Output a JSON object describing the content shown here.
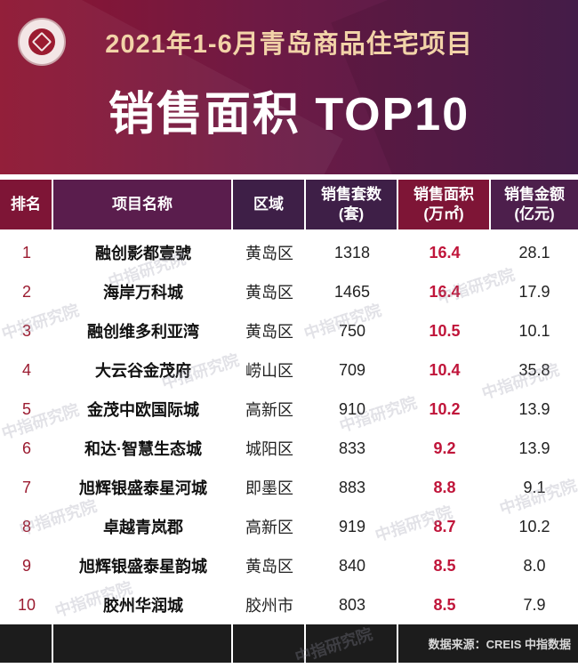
{
  "header": {
    "subtitle": "2021年1-6月青岛商品住宅项目",
    "title": "销售面积 TOP10",
    "logo_icon": "company-seal-logo"
  },
  "table": {
    "columns": [
      "排名",
      "项目名称",
      "区域",
      "销售套数\n(套)",
      "销售面积\n(万㎡)",
      "销售金额\n(亿元)"
    ],
    "rows": [
      {
        "rank": "1",
        "name": "融创影都壹號",
        "district": "黄岛区",
        "units": "1318",
        "area": "16.4",
        "amount": "28.1"
      },
      {
        "rank": "2",
        "name": "海岸万科城",
        "district": "黄岛区",
        "units": "1465",
        "area": "16.4",
        "amount": "17.9"
      },
      {
        "rank": "3",
        "name": "融创维多利亚湾",
        "district": "黄岛区",
        "units": "750",
        "area": "10.5",
        "amount": "10.1"
      },
      {
        "rank": "4",
        "name": "大云谷金茂府",
        "district": "崂山区",
        "units": "709",
        "area": "10.4",
        "amount": "35.8"
      },
      {
        "rank": "5",
        "name": "金茂中欧国际城",
        "district": "高新区",
        "units": "910",
        "area": "10.2",
        "amount": "13.9"
      },
      {
        "rank": "6",
        "name": "和达·智慧生态城",
        "district": "城阳区",
        "units": "833",
        "area": "9.2",
        "amount": "13.9"
      },
      {
        "rank": "7",
        "name": "旭辉银盛泰星河城",
        "district": "即墨区",
        "units": "883",
        "area": "8.8",
        "amount": "9.1"
      },
      {
        "rank": "8",
        "name": "卓越青岚郡",
        "district": "高新区",
        "units": "919",
        "area": "8.7",
        "amount": "10.2"
      },
      {
        "rank": "9",
        "name": "旭辉银盛泰星韵城",
        "district": "黄岛区",
        "units": "840",
        "area": "8.5",
        "amount": "8.0"
      },
      {
        "rank": "10",
        "name": "胶州华润城",
        "district": "胶州市",
        "units": "803",
        "area": "8.5",
        "amount": "7.9"
      }
    ]
  },
  "footer": {
    "source": "数据来源：CREIS 中指数据"
  },
  "watermark": "中指研究院",
  "colors": {
    "header_left": "#8e1430",
    "header_right": "#4a1f4f",
    "accent": "#c0153a",
    "footer": "#1c1c1c"
  }
}
